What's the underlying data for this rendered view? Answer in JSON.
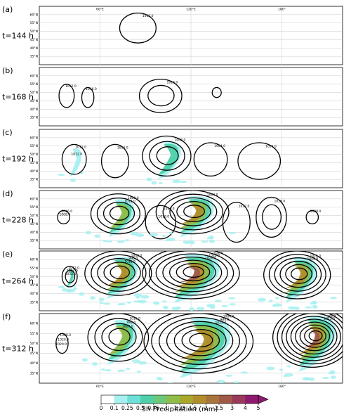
{
  "chart_data": {
    "type": "contour",
    "variable_shaded": "3h Precipitation (mm)",
    "variable_contoured": "sea level pressure",
    "lon_ticks": [
      "60°E",
      "120°E",
      "180°"
    ],
    "lat_ticks": [
      "35°N",
      "40°N",
      "45°N",
      "50°N",
      "55°N",
      "60°N"
    ],
    "panels": [
      {
        "label": "(a)",
        "time": "t=144 h",
        "contour_labels": [
          "1012.0"
        ],
        "systems": [
          {
            "lon": 85,
            "lat": 52,
            "rx": 12,
            "ry": 9,
            "rings": 1,
            "rain": 0
          }
        ]
      },
      {
        "label": "(b)",
        "time": "t=168 h",
        "contour_labels": [
          "1012.0",
          "1016.0",
          "1016.0"
        ],
        "systems": [
          {
            "lon": 38,
            "lat": 48,
            "rx": 5,
            "ry": 7,
            "rings": 1,
            "rain": 0
          },
          {
            "lon": 52,
            "lat": 47,
            "rx": 4,
            "ry": 6,
            "rings": 1,
            "rain": 0
          },
          {
            "lon": 100,
            "lat": 48,
            "rx": 14,
            "ry": 10,
            "rings": 2,
            "rain": 0
          },
          {
            "lon": 137,
            "lat": 50,
            "rx": 3,
            "ry": 3,
            "rings": 1,
            "rain": 0
          }
        ]
      },
      {
        "label": "(c)",
        "time": "t=192 h",
        "contour_labels": [
          "1012.0",
          "1016.0",
          "1008.0",
          "1004.0",
          "1016.0",
          "1012.0"
        ],
        "systems": [
          {
            "lon": 43,
            "lat": 47,
            "rx": 8,
            "ry": 9,
            "rings": 1,
            "rain": 1
          },
          {
            "lon": 70,
            "lat": 46,
            "rx": 9,
            "ry": 10,
            "rings": 1,
            "rain": 0
          },
          {
            "lon": 104,
            "lat": 49,
            "rx": 16,
            "ry": 12,
            "rings": 3,
            "rain": 2
          },
          {
            "lon": 133,
            "lat": 47,
            "rx": 11,
            "ry": 10,
            "rings": 1,
            "rain": 0
          },
          {
            "lon": 165,
            "lat": 46,
            "rx": 14,
            "ry": 11,
            "rings": 1,
            "rain": 0
          }
        ]
      },
      {
        "label": "(d)",
        "time": "t=228 h",
        "contour_labels": [
          "1016.0",
          "1000.0",
          "1016.0",
          "1004.0",
          "1012.0",
          "1016.0",
          "1020.0",
          "1008.0",
          "1012.0",
          "1016.0"
        ],
        "systems": [
          {
            "lon": 36,
            "lat": 49,
            "rx": 4,
            "ry": 4,
            "rings": 1,
            "rain": 0
          },
          {
            "lon": 72,
            "lat": 51,
            "rx": 18,
            "ry": 12,
            "rings": 4,
            "rain": 3
          },
          {
            "lon": 100,
            "lat": 46,
            "rx": 10,
            "ry": 10,
            "rings": 1,
            "rain": 0
          },
          {
            "lon": 121,
            "lat": 52,
            "rx": 24,
            "ry": 13,
            "rings": 5,
            "rain": 4
          },
          {
            "lon": 150,
            "lat": 46,
            "rx": 9,
            "ry": 12,
            "rings": 1,
            "rain": 0
          },
          {
            "lon": 173,
            "lat": 49,
            "rx": 10,
            "ry": 12,
            "rings": 2,
            "rain": 0
          },
          {
            "lon": 200,
            "lat": 49,
            "rx": 4,
            "ry": 4,
            "rings": 1,
            "rain": 0
          }
        ]
      },
      {
        "label": "(e)",
        "time": "t=264 h",
        "contour_labels": [
          "1012.0",
          "1008.0",
          "1020.0",
          "1016.0",
          "1004.0",
          "996.0",
          "1020.0",
          "1008.0",
          "1012.0",
          "1016.0",
          "1020.0"
        ],
        "systems": [
          {
            "lon": 40,
            "lat": 50,
            "rx": 5,
            "ry": 6,
            "rings": 2,
            "rain": 2
          },
          {
            "lon": 72,
            "lat": 52,
            "rx": 22,
            "ry": 13,
            "rings": 5,
            "rain": 4
          },
          {
            "lon": 120,
            "lat": 52,
            "rx": 32,
            "ry": 15,
            "rings": 7,
            "rain": 5
          },
          {
            "lon": 190,
            "lat": 51,
            "rx": 22,
            "ry": 14,
            "rings": 6,
            "rain": 4
          }
        ]
      },
      {
        "label": "(f)",
        "time": "t=312 h",
        "contour_labels": [
          "1008.0",
          "1016.0",
          "1004.0",
          "996.0",
          "1020.0",
          "992.0",
          "984.0",
          "996.0",
          "1020.0",
          "1020.0",
          "1024.0",
          "1012.0"
        ],
        "systems": [
          {
            "lon": 35,
            "lat": 50,
            "rx": 4,
            "ry": 5,
            "rings": 1,
            "rain": 0
          },
          {
            "lon": 72,
            "lat": 53,
            "rx": 20,
            "ry": 12,
            "rings": 4,
            "rain": 3
          },
          {
            "lon": 125,
            "lat": 51,
            "rx": 36,
            "ry": 16,
            "rings": 7,
            "rain": 4
          },
          {
            "lon": 200,
            "lat": 53,
            "rx": 26,
            "ry": 15,
            "rings": 9,
            "rain": 5
          }
        ]
      }
    ],
    "colorbar": {
      "title": "3h Precipitation (mm)",
      "ticks": [
        "0",
        "0.1",
        "0.25",
        "0.5",
        "0.75",
        "1",
        "1.25",
        "1.5",
        "2",
        "2.5",
        "3",
        "4",
        "5"
      ],
      "colors": [
        "#ffffff",
        "#a6f0f0",
        "#6ee0d8",
        "#4fd0a8",
        "#6cc87a",
        "#8fbd4a",
        "#a8a82a",
        "#b08e2c",
        "#a8753c",
        "#a05a48",
        "#9a3a5a",
        "#8e1a6e",
        "#8e1a6e"
      ],
      "extend": "max"
    }
  }
}
